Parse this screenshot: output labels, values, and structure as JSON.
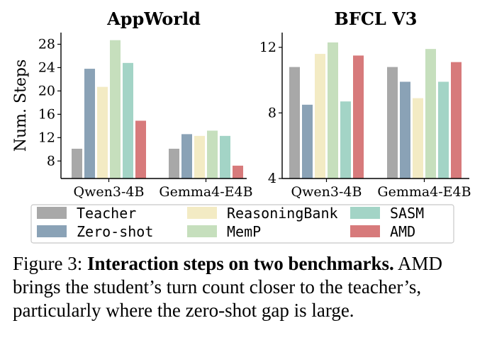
{
  "chart_data": [
    {
      "type": "bar",
      "title": "AppWorld",
      "ylabel": "Num. Steps",
      "xlabel": "",
      "ylim": [
        5,
        30
      ],
      "yticks": [
        8,
        12,
        16,
        20,
        24,
        28
      ],
      "categories": [
        "Qwen3-4B",
        "Gemma4-E4B"
      ],
      "series": [
        {
          "name": "Teacher",
          "values": [
            10.1,
            10.1
          ]
        },
        {
          "name": "Zero-shot",
          "values": [
            23.8,
            12.6
          ]
        },
        {
          "name": "ReasoningBank",
          "values": [
            20.7,
            12.3
          ]
        },
        {
          "name": "MemP",
          "values": [
            28.7,
            13.2
          ]
        },
        {
          "name": "SASM",
          "values": [
            24.8,
            12.3
          ]
        },
        {
          "name": "AMD",
          "values": [
            14.9,
            7.2
          ]
        }
      ]
    },
    {
      "type": "bar",
      "title": "BFCL V3",
      "ylabel": "",
      "xlabel": "",
      "ylim": [
        4,
        12.9
      ],
      "yticks": [
        4,
        8,
        12
      ],
      "categories": [
        "Qwen3-4B",
        "Gemma4-E4B"
      ],
      "series": [
        {
          "name": "Teacher",
          "values": [
            10.8,
            10.8
          ]
        },
        {
          "name": "Zero-shot",
          "values": [
            8.5,
            9.9
          ]
        },
        {
          "name": "ReasoningBank",
          "values": [
            11.6,
            8.9
          ]
        },
        {
          "name": "MemP",
          "values": [
            12.3,
            11.9
          ]
        },
        {
          "name": "SASM",
          "values": [
            8.7,
            9.9
          ]
        },
        {
          "name": "AMD",
          "values": [
            11.5,
            11.1
          ]
        }
      ]
    }
  ],
  "colors": {
    "Teacher": "#a8a8a8",
    "Zero-shot": "#8aa2b6",
    "ReasoningBank": "#f3ebc4",
    "MemP": "#c6dfbd",
    "SASM": "#a3d4c6",
    "AMD": "#d77a7b"
  },
  "legend": {
    "placement": "bottom",
    "entries": [
      "Teacher",
      "ReasoningBank",
      "SASM",
      "Zero-shot",
      "MemP",
      "AMD"
    ]
  },
  "caption": {
    "label": "Figure 3:",
    "bold": "Interaction steps on two benchmarks.",
    "text": "AMD brings the student’s turn count closer to the teacher’s, particularly where the zero-shot gap is large."
  }
}
